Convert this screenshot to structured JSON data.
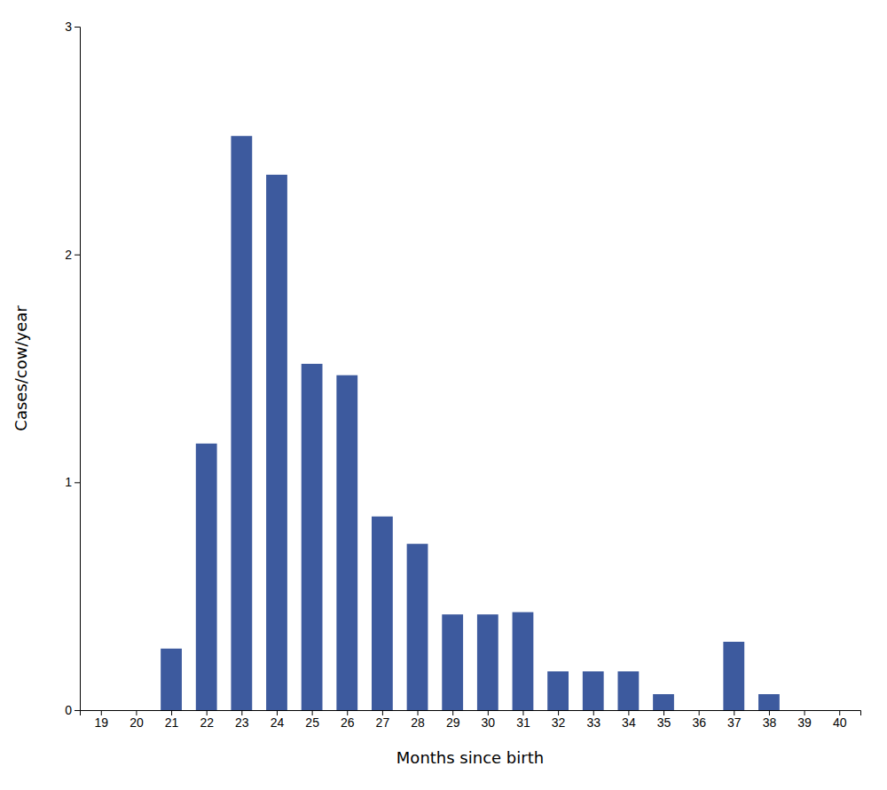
{
  "chart_data": {
    "type": "bar",
    "x": [
      19,
      20,
      21,
      22,
      23,
      24,
      25,
      26,
      27,
      28,
      29,
      30,
      31,
      32,
      33,
      34,
      35,
      36,
      37,
      38,
      39,
      40
    ],
    "values": [
      0,
      0,
      0.27,
      1.17,
      2.52,
      2.35,
      1.52,
      1.47,
      0.85,
      0.73,
      0.42,
      0.42,
      0.43,
      0.17,
      0.17,
      0.17,
      0.07,
      0,
      0.3,
      0.07,
      0,
      0
    ],
    "color": "#3d5a9e",
    "xlabel": "Months since birth",
    "ylabel": "Cases/cow/year",
    "xlim": [
      18.4,
      40.6
    ],
    "xticks": [
      19,
      20,
      21,
      22,
      23,
      24,
      25,
      26,
      27,
      28,
      29,
      30,
      31,
      32,
      33,
      34,
      35,
      36,
      37,
      38,
      39,
      40
    ],
    "ylim": [
      0,
      3
    ],
    "yticks": [
      0,
      1,
      2,
      3
    ]
  }
}
